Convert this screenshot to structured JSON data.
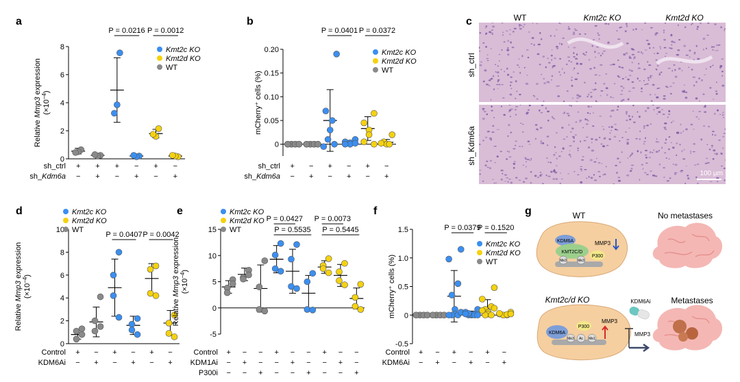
{
  "colors": {
    "kmt2c": "#3b8ff0",
    "kmt2d": "#f5d20f",
    "wt": "#8a8a8a",
    "axis": "#000000",
    "he_bg": "#d9bcd6",
    "he_cell": "#7a5aa3"
  },
  "panels": {
    "a": {
      "letter": "a",
      "ylabel_pre": "Relative ",
      "ylabel_gene": "Mmp3",
      "ylabel_post": " expression",
      "yunit": "(×10",
      "yunit_exp": "−4",
      "yunit_close": ")",
      "legend": [
        {
          "label": "Kmt2c KO",
          "color": "kmt2c"
        },
        {
          "label": "Kmt2d KO",
          "color": "kmt2d"
        },
        {
          "label": "WT",
          "color": "wt"
        }
      ],
      "row_labels": [
        "sh_ctrl",
        "sh_Kdm6a"
      ],
      "row_values": [
        [
          "+",
          "+",
          "+",
          "−",
          "+",
          "−"
        ],
        [
          "−",
          "+",
          "−",
          "+",
          "−",
          "+"
        ]
      ],
      "pvalues": [
        "P = 0.0216",
        "P = 0.0012"
      ]
    },
    "b": {
      "letter": "b",
      "ylabel": "mCherry⁺ cells (%)",
      "legend": [
        {
          "label": "Kmt2c KO",
          "color": "kmt2c"
        },
        {
          "label": "Kmt2d KO",
          "color": "kmt2d"
        },
        {
          "label": "WT",
          "color": "wt"
        }
      ],
      "row_labels": [
        "sh_ctrl",
        "sh_Kdm6a"
      ],
      "row_values": [
        [
          "+",
          "−",
          "+",
          "−",
          "+",
          "−"
        ],
        [
          "−",
          "+",
          "−",
          "+",
          "−",
          "+"
        ]
      ],
      "pvalues": [
        "P = 0.0401",
        "P = 0.0372"
      ]
    },
    "c": {
      "letter": "c",
      "columns": [
        "WT",
        "Kmt2c KO",
        "Kmt2d KO"
      ],
      "rows": [
        "sh_ctrl",
        "sh_Kdm6a"
      ],
      "scale_bar": "100 µm"
    },
    "d": {
      "letter": "d",
      "ylabel_pre": "Relative ",
      "ylabel_gene": "Mmp3",
      "ylabel_post": " expression",
      "yunit": "(×10",
      "yunit_exp": "−4",
      "yunit_close": ")",
      "legend": [
        {
          "label": "Kmt2c KO",
          "color": "kmt2c"
        },
        {
          "label": "Kmt2d KO",
          "color": "kmt2d"
        },
        {
          "label": "WT",
          "color": "wt"
        }
      ],
      "row_labels": [
        "Control",
        "KDM6Ai"
      ],
      "row_values": [
        [
          "+",
          "−",
          "+",
          "−",
          "+",
          "−"
        ],
        [
          "−",
          "+",
          "−",
          "+",
          "−",
          "+"
        ]
      ],
      "pvalues": [
        "P = 0.0407",
        "P = 0.0042"
      ]
    },
    "e": {
      "letter": "e",
      "ylabel_pre": "Relative ",
      "ylabel_gene": "Mmp3",
      "ylabel_post": " expression",
      "yunit": "(×10",
      "yunit_exp": "−4",
      "yunit_close": ")",
      "legend": [
        {
          "label": "Kmt2c KO",
          "color": "kmt2c"
        },
        {
          "label": "Kmt2d KO",
          "color": "kmt2d"
        },
        {
          "label": "WT",
          "color": "wt"
        }
      ],
      "row_labels": [
        "Control",
        "KDM1Ai",
        "P300i"
      ],
      "row_values": [
        [
          "+",
          "−",
          "−",
          "+",
          "−",
          "−",
          "+",
          "−",
          "−"
        ],
        [
          "−",
          "+",
          "−",
          "−",
          "+",
          "−",
          "−",
          "+",
          "−"
        ],
        [
          "−",
          "−",
          "+",
          "−",
          "−",
          "+",
          "−",
          "−",
          "+"
        ]
      ],
      "pvalues": [
        "P = 0.0427",
        "P = 0.5535",
        "P = 0.0073",
        "P = 0.5445"
      ]
    },
    "f": {
      "letter": "f",
      "ylabel": "mCherry⁺ cells (%)",
      "legend": [
        {
          "label": "Kmt2c KO",
          "color": "kmt2c"
        },
        {
          "label": "Kmt2d KO",
          "color": "kmt2d"
        },
        {
          "label": "WT",
          "color": "wt"
        }
      ],
      "row_labels": [
        "Control",
        "KDM6Ai"
      ],
      "row_values": [
        [
          "+",
          "−",
          "+",
          "−",
          "+",
          "−"
        ],
        [
          "−",
          "+",
          "−",
          "+",
          "−",
          "+"
        ]
      ],
      "pvalues": [
        "P = 0.0379",
        "P = 0.1520"
      ]
    },
    "g": {
      "letter": "g",
      "wt_label": "WT",
      "ko_label": "Kmt2c/d KO",
      "no_met": "No metastases",
      "met": "Metastases",
      "drug": "KDM6Ai",
      "mmp3": "MMP3",
      "kdm6a": "KDM6A",
      "kmt": "KMT2C/D",
      "p300": "P300",
      "me3": "Me3",
      "ac": "Ac",
      "me1": "Me1"
    }
  },
  "chart_data": [
    {
      "panel": "a",
      "type": "scatter",
      "ylabel": "Relative Mmp3 expression (×10−4)",
      "ylim": [
        0,
        8
      ],
      "yticks": [
        0,
        2,
        4,
        6,
        8
      ],
      "groups": [
        {
          "series": "WT",
          "sh_ctrl": "+",
          "sh_Kdm6a": "−",
          "values": [
            0.65,
            0.5,
            0.45
          ],
          "mean": 0.55,
          "sd": 0.2
        },
        {
          "series": "WT",
          "sh_ctrl": "+",
          "sh_Kdm6a": "+",
          "values": [
            0.25,
            0.2,
            0.3
          ],
          "mean": 0.25,
          "sd": 0.05
        },
        {
          "series": "Kmt2c KO",
          "sh_ctrl": "+",
          "sh_Kdm6a": "−",
          "values": [
            7.55,
            3.85,
            3.25
          ],
          "mean": 4.9,
          "sd": 2.3
        },
        {
          "series": "Kmt2c KO",
          "sh_ctrl": "−",
          "sh_Kdm6a": "+",
          "values": [
            0.2,
            0.15,
            0.25
          ],
          "mean": 0.2,
          "sd": 0.05
        },
        {
          "series": "Kmt2d KO",
          "sh_ctrl": "+",
          "sh_Kdm6a": "−",
          "values": [
            2.15,
            1.6,
            1.75
          ],
          "mean": 1.8,
          "sd": 0.3
        },
        {
          "series": "Kmt2d KO",
          "sh_ctrl": "−",
          "sh_Kdm6a": "+",
          "values": [
            0.15,
            0.2,
            0.25
          ],
          "mean": 0.2,
          "sd": 0.05
        }
      ]
    },
    {
      "panel": "b",
      "type": "scatter",
      "ylabel": "mCherry⁺ cells (%)",
      "ylim": [
        -0.025,
        0.2
      ],
      "yticks": [
        0,
        0.05,
        0.1,
        0.15,
        0.2
      ],
      "groups": [
        {
          "series": "WT",
          "values": [
            0,
            0,
            0,
            0,
            0,
            0,
            0,
            0
          ],
          "mean": 0,
          "sd": 0
        },
        {
          "series": "WT",
          "values": [
            0,
            0,
            0,
            0,
            0,
            0,
            0,
            0
          ],
          "mean": 0,
          "sd": 0
        },
        {
          "series": "Kmt2c KO",
          "values": [
            0.19,
            0.07,
            0.05,
            0.03,
            0.01,
            0,
            -0.005
          ],
          "mean": 0.05,
          "sd": 0.065
        },
        {
          "series": "Kmt2c KO",
          "values": [
            0.01,
            0.005,
            0.003,
            0,
            0,
            0.002
          ],
          "mean": 0.004,
          "sd": 0.004
        },
        {
          "series": "Kmt2d KO",
          "values": [
            0.065,
            0.045,
            0.03,
            0.02,
            0.005,
            0
          ],
          "mean": 0.033,
          "sd": 0.025
        },
        {
          "series": "Kmt2d KO",
          "values": [
            0.02,
            0.005,
            0,
            0,
            0.002
          ],
          "mean": 0.004,
          "sd": 0.006
        }
      ]
    },
    {
      "panel": "d",
      "type": "scatter",
      "ylabel": "Relative Mmp3 expression (×10−4)",
      "ylim": [
        0,
        10
      ],
      "yticks": [
        0,
        2,
        4,
        6,
        8,
        10
      ],
      "groups": [
        {
          "series": "WT",
          "values": [
            1.3,
            0.4,
            1.1,
            0.8
          ],
          "mean": 0.8,
          "sd": 0.4
        },
        {
          "series": "WT",
          "values": [
            4.1,
            2.0,
            1.1,
            1.5
          ],
          "mean": 1.9,
          "sd": 1.3
        },
        {
          "series": "Kmt2c KO",
          "values": [
            8.0,
            6.0,
            4.2,
            2.3
          ],
          "mean": 4.9,
          "sd": 2.5
        },
        {
          "series": "Kmt2c KO",
          "values": [
            2.2,
            1.7,
            1.2,
            0.8
          ],
          "mean": 1.6,
          "sd": 0.8
        },
        {
          "series": "Kmt2d KO",
          "values": [
            6.8,
            6.5,
            4.4,
            4.2
          ],
          "mean": 5.7,
          "sd": 1.3
        },
        {
          "series": "Kmt2d KO",
          "values": [
            2.5,
            1.8,
            0.9,
            0.6
          ],
          "mean": 1.8,
          "sd": 1.1
        }
      ]
    },
    {
      "panel": "e",
      "type": "scatter",
      "ylabel": "Relative Mmp3 expression (×10−4)",
      "ylim": [
        -5,
        15
      ],
      "yticks": [
        -5,
        0,
        5,
        10,
        15
      ],
      "groups": [
        {
          "series": "WT",
          "values": [
            5.4,
            3.8,
            2.9,
            4.6
          ],
          "mean": 4.0,
          "sd": 1.2
        },
        {
          "series": "WT",
          "values": [
            7.2,
            5.8,
            5.5,
            6.3
          ],
          "mean": 6.4,
          "sd": 1.2
        },
        {
          "series": "WT",
          "values": [
            9.0,
            4.0,
            -0.3,
            -0.6
          ],
          "mean": 3.7,
          "sd": 4.5
        },
        {
          "series": "Kmt2c KO",
          "values": [
            12.3,
            10.1,
            7.5,
            7.0
          ],
          "mean": 9.3,
          "sd": 2.6
        },
        {
          "series": "Kmt2c KO",
          "values": [
            12.1,
            9.3,
            4.1,
            3.7
          ],
          "mean": 7.0,
          "sd": 4.2
        },
        {
          "series": "Kmt2c KO",
          "values": [
            6.6,
            5.0,
            -0.3,
            -0.4
          ],
          "mean": 2.8,
          "sd": 3.4
        },
        {
          "series": "Kmt2d KO",
          "values": [
            9.4,
            8.1,
            7.5,
            6.7
          ],
          "mean": 7.8,
          "sd": 1.2
        },
        {
          "series": "Kmt2d KO",
          "values": [
            8.5,
            6.9,
            5.2,
            4.4
          ],
          "mean": 6.2,
          "sd": 2.1
        },
        {
          "series": "Kmt2d KO",
          "values": [
            4.5,
            2.0,
            0.3,
            -0.3
          ],
          "mean": 1.8,
          "sd": 2.0
        }
      ]
    },
    {
      "panel": "f",
      "type": "scatter",
      "ylabel": "mCherry⁺ cells (%)",
      "ylim": [
        -0.5,
        1.5
      ],
      "yticks": [
        -0.5,
        0,
        0.5,
        1.0,
        1.5
      ],
      "groups": [
        {
          "series": "WT",
          "values": [
            0,
            0,
            0,
            0,
            0,
            0,
            0,
            0
          ],
          "mean": 0,
          "sd": 0
        },
        {
          "series": "WT",
          "values": [
            0,
            0,
            0,
            0,
            0,
            0,
            0,
            0
          ],
          "mean": 0,
          "sd": 0
        },
        {
          "series": "Kmt2c KO",
          "values": [
            1.15,
            0.98,
            0.55,
            0.35,
            0.1,
            0.02,
            0,
            0,
            0,
            0.05
          ],
          "mean": 0.33,
          "sd": 0.45
        },
        {
          "series": "Kmt2c KO",
          "values": [
            0.1,
            0.05,
            0.02,
            0,
            0,
            0.01,
            0.03,
            0,
            0.02,
            0
          ],
          "mean": 0.03,
          "sd": 0.04
        },
        {
          "series": "Kmt2d KO",
          "values": [
            0.48,
            0.28,
            0.15,
            0.1,
            0.05,
            0.02,
            0,
            0,
            0.08,
            0.12
          ],
          "mean": 0.12,
          "sd": 0.15
        },
        {
          "series": "Kmt2d KO",
          "values": [
            0.05,
            0.02,
            0,
            0,
            0,
            0.01,
            0.03,
            0.02
          ],
          "mean": 0.02,
          "sd": 0.02
        }
      ]
    }
  ]
}
